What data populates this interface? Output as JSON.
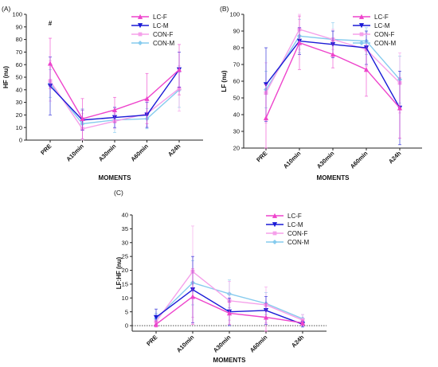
{
  "colors": {
    "LC-F": "#ee44cc",
    "LC-M": "#1a1ad6",
    "CON-F": "#f5a0ea",
    "CON-M": "#86cbee"
  },
  "chart_data": [
    {
      "panel": "(A)",
      "type": "line",
      "categories": [
        "PRE",
        "A10min",
        "A30min",
        "A60min",
        "A24h"
      ],
      "xlabel": "MOMENTS",
      "ylabel": "HF (nu)",
      "ylim": [
        0,
        100
      ],
      "yticks": [
        "0",
        "10",
        "20",
        "30",
        "40",
        "50",
        "60",
        "70",
        "80",
        "90",
        "100"
      ],
      "legend_position": "top-right",
      "annotations": [
        {
          "text": "#",
          "category": "PRE",
          "y": 91
        }
      ],
      "series": [
        {
          "name": "LC-F",
          "values": [
            61,
            17,
            24,
            33,
            56
          ],
          "err": [
            20,
            16,
            10,
            20,
            20
          ]
        },
        {
          "name": "LC-M",
          "values": [
            43,
            16,
            18,
            20,
            56
          ],
          "err": [
            23,
            8,
            8,
            10,
            14
          ]
        },
        {
          "name": "CON-F",
          "values": [
            47,
            9,
            15,
            21,
            41
          ],
          "err": [
            16,
            12,
            6,
            10,
            18
          ]
        },
        {
          "name": "CON-M",
          "values": [
            45,
            13,
            16,
            17,
            40
          ],
          "err": [
            11,
            12,
            10,
            8,
            14
          ]
        }
      ]
    },
    {
      "panel": "(B)",
      "type": "line",
      "categories": [
        "PRE",
        "A10min",
        "A30min",
        "A60min",
        "A24h"
      ],
      "xlabel": "MOMENTS",
      "ylabel": "LF (nu)",
      "ylim": [
        20,
        100
      ],
      "yticks": [
        "20",
        "30",
        "40",
        "50",
        "60",
        "70",
        "80",
        "90",
        "100"
      ],
      "legend_position": "top-right",
      "series": [
        {
          "name": "LC-F",
          "values": [
            38,
            83,
            76,
            67,
            44
          ],
          "err": [
            20,
            16,
            8,
            16,
            18
          ]
        },
        {
          "name": "LC-M",
          "values": [
            58,
            84,
            82,
            80,
            44
          ],
          "err": [
            22,
            8,
            8,
            10,
            22
          ]
        },
        {
          "name": "CON-F",
          "values": [
            53,
            91,
            85,
            79,
            59
          ],
          "err": [
            18,
            12,
            6,
            10,
            18
          ]
        },
        {
          "name": "CON-M",
          "values": [
            55,
            87,
            85,
            84,
            61
          ],
          "err": [
            11,
            10,
            10,
            8,
            14
          ]
        }
      ]
    },
    {
      "panel": "(C)",
      "type": "line",
      "categories": [
        "PRE",
        "A10min",
        "A30min",
        "A60min",
        "A24h"
      ],
      "xlabel": "MOMENTS",
      "ylabel": "LF:HF (nu)",
      "ylim": [
        -2,
        40
      ],
      "yticks": [
        "0",
        "5",
        "10",
        "15",
        "20",
        "25",
        "30",
        "35",
        "40"
      ],
      "legend_position": "top-right",
      "series": [
        {
          "name": "LC-F",
          "values": [
            0.5,
            10.5,
            4.5,
            3,
            1
          ],
          "err": [
            1,
            10,
            4,
            5,
            1
          ]
        },
        {
          "name": "LC-M",
          "values": [
            3,
            13,
            5,
            5.5,
            0.5
          ],
          "err": [
            3,
            12,
            5,
            5,
            1
          ]
        },
        {
          "name": "CON-F",
          "values": [
            1.5,
            19.5,
            9,
            7.5,
            2
          ],
          "err": [
            2,
            16.5,
            7,
            6.5,
            2
          ]
        },
        {
          "name": "CON-M",
          "values": [
            2.5,
            15.5,
            11.5,
            8,
            2.5
          ],
          "err": [
            2,
            8,
            5,
            4,
            1.5
          ]
        }
      ]
    }
  ]
}
